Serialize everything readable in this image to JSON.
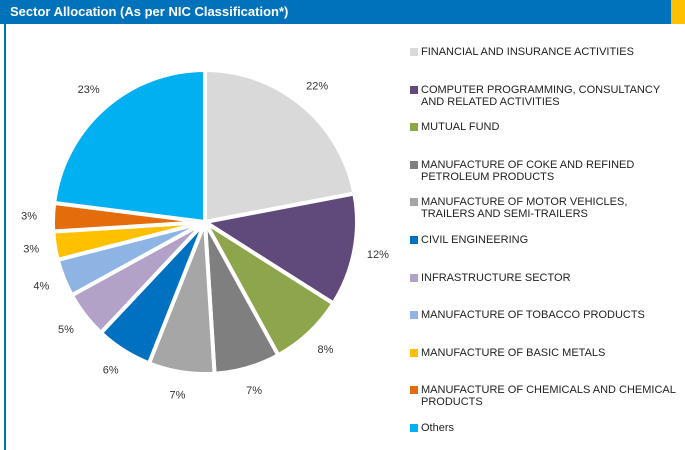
{
  "chart_data": {
    "type": "pie",
    "title": "Sector Allocation (As per NIC Classification*)",
    "categories": [
      "FINANCIAL AND INSURANCE ACTIVITIES",
      "COMPUTER PROGRAMMING, CONSULTANCY AND RELATED ACTIVITIES",
      "MUTUAL FUND",
      "MANUFACTURE OF COKE AND REFINED PETROLEUM PRODUCTS",
      "MANUFACTURE OF MOTOR VEHICLES, TRAILERS AND SEMI-TRAILERS",
      "CIVIL ENGINEERING",
      "INFRASTRUCTURE SECTOR",
      "MANUFACTURE OF TOBACCO PRODUCTS",
      "MANUFACTURE OF BASIC METALS",
      "MANUFACTURE OF CHEMICALS AND CHEMICAL PRODUCTS",
      "Others"
    ],
    "values": [
      22,
      12,
      8,
      7,
      7,
      6,
      5,
      4,
      3,
      3,
      23
    ],
    "value_labels": [
      "22%",
      "12%",
      "8%",
      "7%",
      "7%",
      "6%",
      "5%",
      "4%",
      "3%",
      "3%",
      "23%"
    ],
    "colors": [
      "#d9d9d9",
      "#604a7b",
      "#8ea64b",
      "#7f7f7f",
      "#a6a6a6",
      "#0070c0",
      "#b3a2c7",
      "#8eb4e3",
      "#ffc000",
      "#e46c0a",
      "#00b0f0"
    ]
  }
}
